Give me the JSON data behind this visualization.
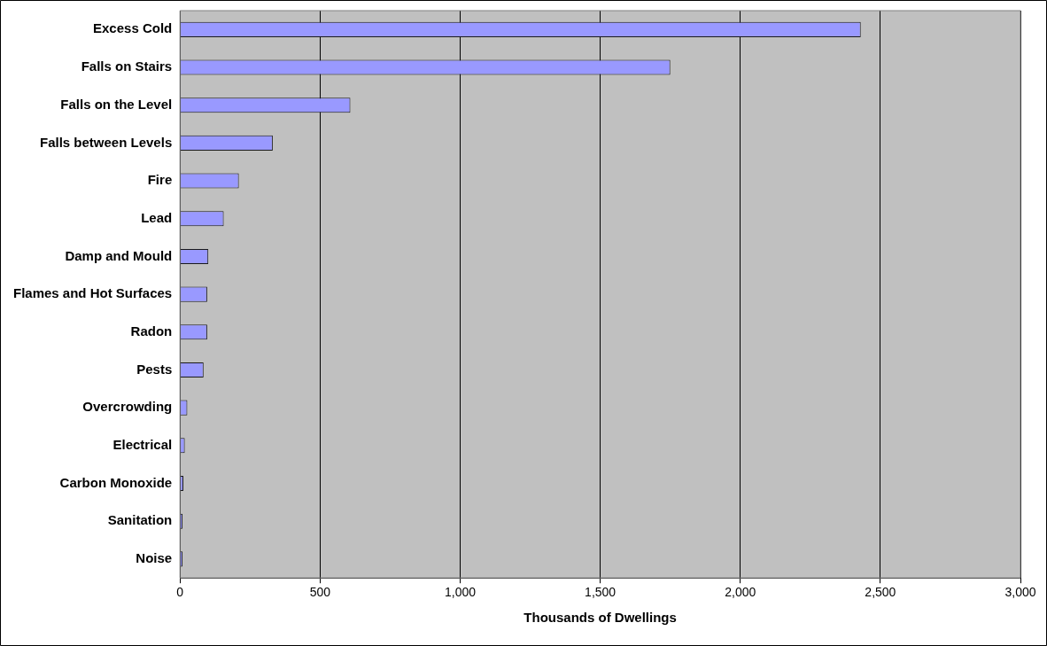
{
  "chart_data": {
    "type": "bar",
    "orientation": "horizontal",
    "xlabel": "Thousands of Dwellings",
    "categories": [
      "Excess Cold",
      "Falls on Stairs",
      "Falls on the Level",
      "Falls between Levels",
      "Fire",
      "Lead",
      "Damp and Mould",
      "Flames and Hot Surfaces",
      "Radon",
      "Pests",
      "Overcrowding",
      "Electrical",
      "Carbon Monoxide",
      "Sanitation",
      "Noise"
    ],
    "values": [
      2430,
      1750,
      608,
      331,
      210,
      156,
      101,
      97,
      97,
      84,
      26,
      17,
      12,
      9,
      9
    ],
    "color": "#9999ff",
    "xlim": [
      0,
      3000
    ],
    "xticks": [
      0,
      500,
      {
        "value": 1000,
        "label": "1,000"
      },
      {
        "value": 1500,
        "label": "1,500"
      },
      {
        "value": 2000,
        "label": "2,000"
      },
      {
        "value": 2500,
        "label": "2,500"
      },
      {
        "value": 3000,
        "label": "3,000"
      }
    ],
    "grid": "x",
    "legend": false
  }
}
